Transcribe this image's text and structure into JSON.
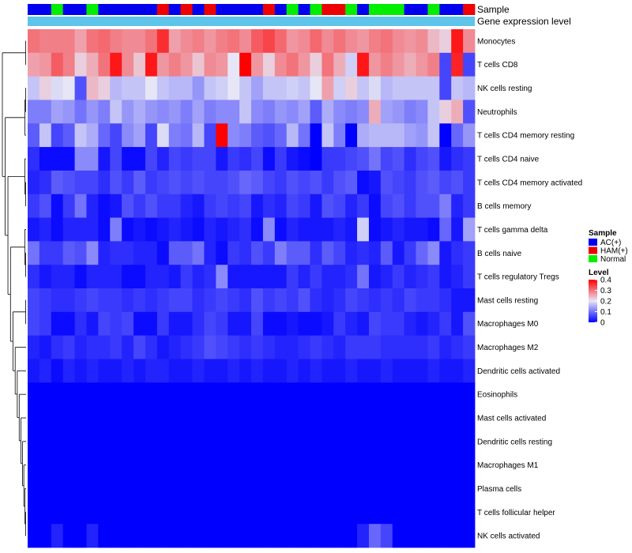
{
  "chart_data": {
    "type": "heatmap",
    "title": "",
    "columns": 38,
    "annotation_labels": {
      "sample": "Sample",
      "expression": "Gene expression level"
    },
    "sample_groups": [
      "AC",
      "AC",
      "N",
      "AC",
      "AC",
      "N",
      "AC",
      "AC",
      "AC",
      "AC",
      "AC",
      "H",
      "AC",
      "H",
      "AC",
      "H",
      "AC",
      "AC",
      "AC",
      "AC",
      "H",
      "AC",
      "N",
      "AC",
      "N",
      "H",
      "H",
      "N",
      "AC",
      "N",
      "N",
      "N",
      "AC",
      "AC",
      "N",
      "AC",
      "AC",
      "H"
    ],
    "rows": [
      "Monocytes",
      "T cells CD8",
      "NK cells resting",
      "Neutrophils",
      "T cells CD4 memory resting",
      "T cells CD4 naive",
      "T cells CD4 memory activated",
      "B cells memory",
      "T cells gamma delta",
      "B cells naive",
      "T cells regulatory  Tregs",
      "Mast cells resting",
      "Macrophages M0",
      "Macrophages M2",
      "Dendritic cells activated",
      "Eosinophils",
      "Mast cells activated",
      "Dendritic cells resting",
      "Macrophages M1",
      "Plasma cells",
      "T cells follicular helper",
      "NK cells activated"
    ],
    "values": [
      [
        0.3,
        0.29,
        0.29,
        0.29,
        0.26,
        0.3,
        0.31,
        0.29,
        0.28,
        0.28,
        0.3,
        0.36,
        0.26,
        0.28,
        0.29,
        0.27,
        0.29,
        0.3,
        0.28,
        0.32,
        0.34,
        0.31,
        0.27,
        0.28,
        0.31,
        0.28,
        0.3,
        0.28,
        0.27,
        0.29,
        0.3,
        0.28,
        0.27,
        0.28,
        0.24,
        0.22,
        0.38,
        0.28
      ],
      [
        0.26,
        0.27,
        0.32,
        0.29,
        0.22,
        0.25,
        0.3,
        0.38,
        0.28,
        0.23,
        0.38,
        0.27,
        0.29,
        0.27,
        0.23,
        0.28,
        0.27,
        0.2,
        0.4,
        0.27,
        0.22,
        0.28,
        0.3,
        0.27,
        0.22,
        0.3,
        0.25,
        0.18,
        0.38,
        0.27,
        0.29,
        0.27,
        0.25,
        0.27,
        0.29,
        0.06,
        0.37,
        0.06
      ],
      [
        0.17,
        0.22,
        0.19,
        0.2,
        0.07,
        0.24,
        0.22,
        0.16,
        0.17,
        0.17,
        0.2,
        0.17,
        0.16,
        0.16,
        0.13,
        0.17,
        0.18,
        0.2,
        0.17,
        0.14,
        0.17,
        0.17,
        0.18,
        0.17,
        0.2,
        0.26,
        0.18,
        0.22,
        0.17,
        0.19,
        0.16,
        0.17,
        0.17,
        0.17,
        0.17,
        0.06,
        0.17,
        0.16
      ],
      [
        0.11,
        0.11,
        0.14,
        0.13,
        0.1,
        0.13,
        0.11,
        0.17,
        0.13,
        0.15,
        0.13,
        0.12,
        0.13,
        0.11,
        0.14,
        0.11,
        0.12,
        0.12,
        0.17,
        0.12,
        0.11,
        0.13,
        0.12,
        0.14,
        0.08,
        0.15,
        0.12,
        0.11,
        0.12,
        0.25,
        0.14,
        0.13,
        0.11,
        0.12,
        0.17,
        0.22,
        0.25,
        0.07
      ],
      [
        0.08,
        0.17,
        0.06,
        0.08,
        0.17,
        0.15,
        0.09,
        0.06,
        0.12,
        0.14,
        0.06,
        0.19,
        0.11,
        0.1,
        0.16,
        0.06,
        0.4,
        0.12,
        0.11,
        0.08,
        0.07,
        0.09,
        0.16,
        0.1,
        0.0,
        0.17,
        0.11,
        0.0,
        0.15,
        0.16,
        0.16,
        0.16,
        0.14,
        0.13,
        0.17,
        0.0,
        0.09,
        0.13
      ],
      [
        0.04,
        0.01,
        0.01,
        0.01,
        0.12,
        0.12,
        0.02,
        0.06,
        0.01,
        0.01,
        0.06,
        0.03,
        0.06,
        0.05,
        0.06,
        0.06,
        0.02,
        0.05,
        0.04,
        0.06,
        0.01,
        0.05,
        0.02,
        0.01,
        0.0,
        0.05,
        0.05,
        0.06,
        0.07,
        0.1,
        0.06,
        0.07,
        0.04,
        0.06,
        0.07,
        0.02,
        0.04,
        0.05
      ],
      [
        0.03,
        0.04,
        0.08,
        0.07,
        0.06,
        0.06,
        0.04,
        0.07,
        0.05,
        0.08,
        0.05,
        0.06,
        0.07,
        0.06,
        0.07,
        0.06,
        0.06,
        0.07,
        0.09,
        0.08,
        0.06,
        0.05,
        0.07,
        0.06,
        0.07,
        0.05,
        0.07,
        0.08,
        0.01,
        0.02,
        0.07,
        0.06,
        0.05,
        0.07,
        0.08,
        0.06,
        0.07,
        0.05
      ],
      [
        0.05,
        0.07,
        0.01,
        0.05,
        0.1,
        0.03,
        0.01,
        0.02,
        0.07,
        0.05,
        0.07,
        0.05,
        0.05,
        0.03,
        0.02,
        0.05,
        0.06,
        0.05,
        0.06,
        0.02,
        0.04,
        0.03,
        0.06,
        0.05,
        0.02,
        0.07,
        0.06,
        0.03,
        0.05,
        0.01,
        0.06,
        0.07,
        0.05,
        0.07,
        0.07,
        0.11,
        0.03,
        0.05
      ],
      [
        0.02,
        0.03,
        0.01,
        0.03,
        0.03,
        0.03,
        0.01,
        0.11,
        0.01,
        0.02,
        0.01,
        0.02,
        0.03,
        0.02,
        0.01,
        0.03,
        0.02,
        0.03,
        0.04,
        0.01,
        0.12,
        0.01,
        0.03,
        0.02,
        0.02,
        0.02,
        0.03,
        0.02,
        0.18,
        0.01,
        0.02,
        0.03,
        0.02,
        0.02,
        0.01,
        0.09,
        0.02,
        0.14
      ],
      [
        0.1,
        0.05,
        0.05,
        0.08,
        0.07,
        0.12,
        0.03,
        0.04,
        0.04,
        0.03,
        0.03,
        0.01,
        0.08,
        0.08,
        0.1,
        0.03,
        0.01,
        0.05,
        0.04,
        0.07,
        0.05,
        0.11,
        0.08,
        0.08,
        0.04,
        0.08,
        0.06,
        0.03,
        0.04,
        0.03,
        0.08,
        0.02,
        0.05,
        0.09,
        0.12,
        0.02,
        0.04,
        0.05
      ],
      [
        0.04,
        0.02,
        0.03,
        0.03,
        0.01,
        0.03,
        0.03,
        0.03,
        0.01,
        0.01,
        0.03,
        0.03,
        0.02,
        0.05,
        0.03,
        0.04,
        0.12,
        0.02,
        0.02,
        0.02,
        0.02,
        0.02,
        0.05,
        0.03,
        0.05,
        0.03,
        0.03,
        0.04,
        0.1,
        0.02,
        0.03,
        0.05,
        0.03,
        0.04,
        0.05,
        0.02,
        0.03,
        0.05
      ],
      [
        0.06,
        0.05,
        0.04,
        0.04,
        0.05,
        0.06,
        0.05,
        0.05,
        0.04,
        0.05,
        0.04,
        0.05,
        0.06,
        0.06,
        0.04,
        0.05,
        0.06,
        0.05,
        0.04,
        0.07,
        0.05,
        0.06,
        0.05,
        0.07,
        0.04,
        0.03,
        0.04,
        0.06,
        0.05,
        0.04,
        0.05,
        0.04,
        0.06,
        0.05,
        0.05,
        0.04,
        0.02,
        0.02
      ],
      [
        0.06,
        0.05,
        0.01,
        0.01,
        0.04,
        0.02,
        0.06,
        0.05,
        0.06,
        0.01,
        0.01,
        0.05,
        0.02,
        0.02,
        0.04,
        0.06,
        0.05,
        0.02,
        0.02,
        0.06,
        0.01,
        0.01,
        0.02,
        0.01,
        0.01,
        0.02,
        0.05,
        0.03,
        0.02,
        0.06,
        0.05,
        0.05,
        0.03,
        0.02,
        0.03,
        0.05,
        0.02,
        0.07
      ],
      [
        0.03,
        0.02,
        0.04,
        0.05,
        0.03,
        0.04,
        0.04,
        0.05,
        0.03,
        0.06,
        0.04,
        0.02,
        0.03,
        0.04,
        0.05,
        0.07,
        0.06,
        0.05,
        0.04,
        0.05,
        0.04,
        0.03,
        0.03,
        0.04,
        0.05,
        0.04,
        0.03,
        0.05,
        0.05,
        0.05,
        0.04,
        0.04,
        0.04,
        0.04,
        0.05,
        0.03,
        0.04,
        0.05
      ],
      [
        0.02,
        0.03,
        0.01,
        0.03,
        0.02,
        0.03,
        0.02,
        0.02,
        0.03,
        0.02,
        0.03,
        0.03,
        0.02,
        0.02,
        0.03,
        0.02,
        0.02,
        0.03,
        0.02,
        0.03,
        0.02,
        0.02,
        0.03,
        0.02,
        0.03,
        0.02,
        0.02,
        0.03,
        0.02,
        0.02,
        0.03,
        0.02,
        0.02,
        0.02,
        0.03,
        0.02,
        0.02,
        0.03
      ],
      [
        0.0,
        0.0,
        0.0,
        0.0,
        0.0,
        0.0,
        0.0,
        0.0,
        0.0,
        0.0,
        0.0,
        0.0,
        0.0,
        0.0,
        0.0,
        0.0,
        0.0,
        0.0,
        0.0,
        0.0,
        0.0,
        0.0,
        0.0,
        0.0,
        0.0,
        0.0,
        0.0,
        0.0,
        0.0,
        0.0,
        0.0,
        0.0,
        0.0,
        0.0,
        0.0,
        0.0,
        0.0,
        0.0
      ],
      [
        0.0,
        0.0,
        0.0,
        0.0,
        0.0,
        0.0,
        0.0,
        0.0,
        0.0,
        0.0,
        0.0,
        0.0,
        0.0,
        0.0,
        0.0,
        0.0,
        0.0,
        0.0,
        0.0,
        0.0,
        0.0,
        0.0,
        0.0,
        0.0,
        0.0,
        0.0,
        0.0,
        0.0,
        0.0,
        0.0,
        0.0,
        0.0,
        0.0,
        0.0,
        0.0,
        0.0,
        0.0,
        0.0
      ],
      [
        0.0,
        0.0,
        0.0,
        0.0,
        0.0,
        0.0,
        0.0,
        0.0,
        0.0,
        0.0,
        0.0,
        0.0,
        0.0,
        0.0,
        0.0,
        0.0,
        0.0,
        0.0,
        0.0,
        0.0,
        0.0,
        0.0,
        0.0,
        0.0,
        0.0,
        0.0,
        0.0,
        0.0,
        0.0,
        0.0,
        0.0,
        0.0,
        0.0,
        0.0,
        0.0,
        0.0,
        0.0,
        0.0
      ],
      [
        0.0,
        0.0,
        0.0,
        0.0,
        0.0,
        0.0,
        0.0,
        0.0,
        0.0,
        0.0,
        0.0,
        0.0,
        0.0,
        0.0,
        0.0,
        0.0,
        0.0,
        0.0,
        0.0,
        0.0,
        0.0,
        0.0,
        0.0,
        0.0,
        0.0,
        0.0,
        0.0,
        0.0,
        0.0,
        0.0,
        0.0,
        0.0,
        0.0,
        0.0,
        0.0,
        0.0,
        0.0,
        0.0
      ],
      [
        0.0,
        0.0,
        0.0,
        0.0,
        0.0,
        0.0,
        0.0,
        0.0,
        0.0,
        0.0,
        0.0,
        0.0,
        0.0,
        0.0,
        0.0,
        0.0,
        0.0,
        0.0,
        0.0,
        0.0,
        0.0,
        0.0,
        0.0,
        0.0,
        0.0,
        0.0,
        0.0,
        0.0,
        0.0,
        0.0,
        0.0,
        0.0,
        0.0,
        0.0,
        0.0,
        0.0,
        0.0,
        0.0
      ],
      [
        0.0,
        0.0,
        0.0,
        0.0,
        0.0,
        0.0,
        0.0,
        0.0,
        0.0,
        0.0,
        0.0,
        0.0,
        0.0,
        0.0,
        0.0,
        0.0,
        0.0,
        0.0,
        0.0,
        0.0,
        0.0,
        0.0,
        0.0,
        0.0,
        0.0,
        0.0,
        0.0,
        0.0,
        0.0,
        0.0,
        0.0,
        0.0,
        0.0,
        0.0,
        0.0,
        0.0,
        0.0,
        0.0
      ],
      [
        0.0,
        0.0,
        0.03,
        0.0,
        0.0,
        0.03,
        0.0,
        0.0,
        0.0,
        0.0,
        0.0,
        0.0,
        0.0,
        0.0,
        0.0,
        0.0,
        0.0,
        0.0,
        0.0,
        0.0,
        0.0,
        0.0,
        0.0,
        0.0,
        0.0,
        0.0,
        0.0,
        0.0,
        0.03,
        0.09,
        0.06,
        0.0,
        0.0,
        0.0,
        0.0,
        0.0,
        0.0,
        0.0
      ]
    ],
    "legend": {
      "sample_title": "Sample",
      "sample_items": [
        {
          "key": "AC",
          "label": "AC(+)",
          "color": "#0000ee"
        },
        {
          "key": "H",
          "label": "HAM(+)",
          "color": "#ee0000"
        },
        {
          "key": "N",
          "label": "Normal",
          "color": "#00ee00"
        }
      ],
      "level_title": "Level",
      "level_ticks": [
        "0.4",
        "0.3",
        "0.2",
        "0.1",
        "0"
      ],
      "level_range": [
        0,
        0.4
      ]
    },
    "colors": {
      "low": "#0000ff",
      "mid": "#e6e6f6",
      "high": "#ff0000",
      "expression_bar": "#5ec4ea",
      "dendrogram": "#000000"
    },
    "dendrogram_order": [
      [
        [
          0,
          1
        ],
        [
          [
            [
              2,
              3
            ],
            4
          ],
          [
            [
              5,
              [
                6,
                7
              ]
            ],
            [
              [
                8,
                [
                  9,
                  10
                ]
              ],
              [
                [
                  11,
                  12
                ],
                [
                  13,
                  [
                    14,
                    [
                      15,
                      [
                        16,
                        [
                          17,
                          [
                            18,
                            [
                              19,
                              [
                                20,
                                21
                              ]
                            ]
                          ]
                        ]
                      ]
                    ]
                  ]
                ]
              ]
            ]
          ]
        ]
      ]
    ]
  }
}
